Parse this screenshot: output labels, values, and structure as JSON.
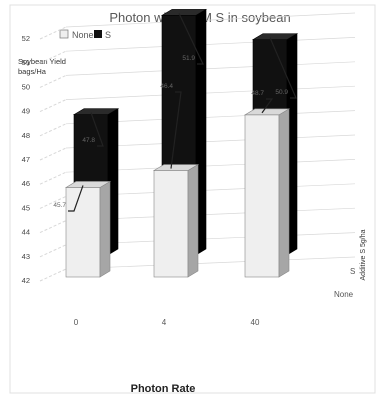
{
  "chart_data": {
    "type": "bar",
    "title": "Photon with CMM S in soybean",
    "ylabel_lines": [
      "Soybean Yield",
      "bags/Ha"
    ],
    "xlabel": "Photon Rate",
    "zlabel": "Additive S 5g/ha",
    "ylim": [
      42,
      52
    ],
    "yticks": [
      "42",
      "43",
      "44",
      "45",
      "46",
      "47",
      "48",
      "49",
      "50",
      "51",
      "52"
    ],
    "categories": [
      "0",
      "4",
      "40"
    ],
    "depth_categories": [
      "None",
      "S"
    ],
    "series": [
      {
        "name": "None",
        "values": [
          45.7,
          46.4,
          48.7
        ],
        "labels": [
          "45.7",
          "46.4",
          "48.7"
        ]
      },
      {
        "name": "S",
        "values": [
          47.8,
          51.9,
          50.9
        ],
        "labels": [
          "47.8",
          "51.9",
          "50.9"
        ]
      }
    ],
    "legend_position": "top-left",
    "grid": true,
    "colors": {
      "none_front": "#efefef",
      "none_side": "#a6a6a6",
      "none_top": "#d9d9d9",
      "s_front": "#111111",
      "s_side": "#000000",
      "s_top": "#2a2a2a",
      "grid": "#d8d8d8",
      "text": "#595959",
      "border": "#d9d9d9"
    }
  }
}
